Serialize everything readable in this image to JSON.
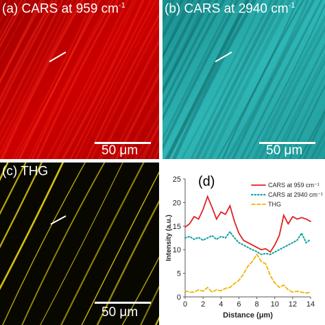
{
  "panels": {
    "a": {
      "label_main": "(a) CARS at 959 cm",
      "label_sup": "-1",
      "scale": "50 μm",
      "color": "#d40000"
    },
    "b": {
      "label_main": "(b) CARS at 2940 cm",
      "label_sup": "-1",
      "scale": "50 μm",
      "color": "#20b0b0"
    },
    "c": {
      "label_main": "(c) THG",
      "label_sup": "",
      "scale": "50 μm",
      "color": "#d8c400"
    }
  },
  "chart_data": {
    "type": "line",
    "panel_label": "(d)",
    "xlabel": "Distance (μm)",
    "ylabel": "Intensity (a.u.)",
    "xlim": [
      0,
      14
    ],
    "ylim": [
      0,
      25
    ],
    "xticks": [
      0,
      2,
      4,
      6,
      8,
      10,
      12,
      14
    ],
    "yticks": [
      0,
      5,
      10,
      15,
      20,
      25
    ],
    "legend_position": "top-right",
    "x": [
      0,
      0.5,
      1,
      1.5,
      2,
      2.5,
      3,
      3.5,
      4,
      4.5,
      5,
      5.5,
      6,
      6.5,
      7,
      7.5,
      8,
      8.5,
      9,
      9.5,
      10,
      10.5,
      11,
      11.5,
      12,
      12.5,
      13,
      13.5,
      14
    ],
    "series": [
      {
        "name": "CARS at 959 cm⁻¹",
        "color": "#e02020",
        "style": "solid",
        "values": [
          14.8,
          15.5,
          17.0,
          16.5,
          18.5,
          21.3,
          19.0,
          16.5,
          18.0,
          17.5,
          19.3,
          16.0,
          13.5,
          12.0,
          11.5,
          11.0,
          10.5,
          10.0,
          10.2,
          9.5,
          11.0,
          13.0,
          17.3,
          15.5,
          17.0,
          16.5,
          16.8,
          16.5,
          16.0
        ]
      },
      {
        "name": "CARS at 2940 cm⁻¹",
        "color": "#1aa5a5",
        "style": "dotted",
        "values": [
          12.5,
          12.8,
          12.2,
          12.6,
          12.0,
          12.5,
          13.0,
          12.2,
          12.8,
          12.5,
          13.8,
          12.5,
          11.5,
          11.0,
          10.5,
          10.0,
          9.6,
          9.0,
          9.2,
          9.0,
          9.5,
          10.0,
          10.5,
          11.0,
          11.5,
          12.0,
          13.5,
          11.5,
          12.2
        ]
      },
      {
        "name": "THG",
        "color": "#f0b400",
        "style": "dashed",
        "values": [
          1.3,
          1.0,
          1.0,
          1.5,
          1.2,
          2.0,
          1.0,
          1.5,
          1.3,
          1.8,
          2.0,
          2.8,
          3.5,
          4.8,
          6.5,
          7.5,
          9.0,
          7.5,
          7.0,
          4.5,
          3.0,
          2.0,
          2.5,
          1.5,
          1.0,
          1.2,
          1.0,
          0.8,
          1.0
        ]
      }
    ]
  }
}
